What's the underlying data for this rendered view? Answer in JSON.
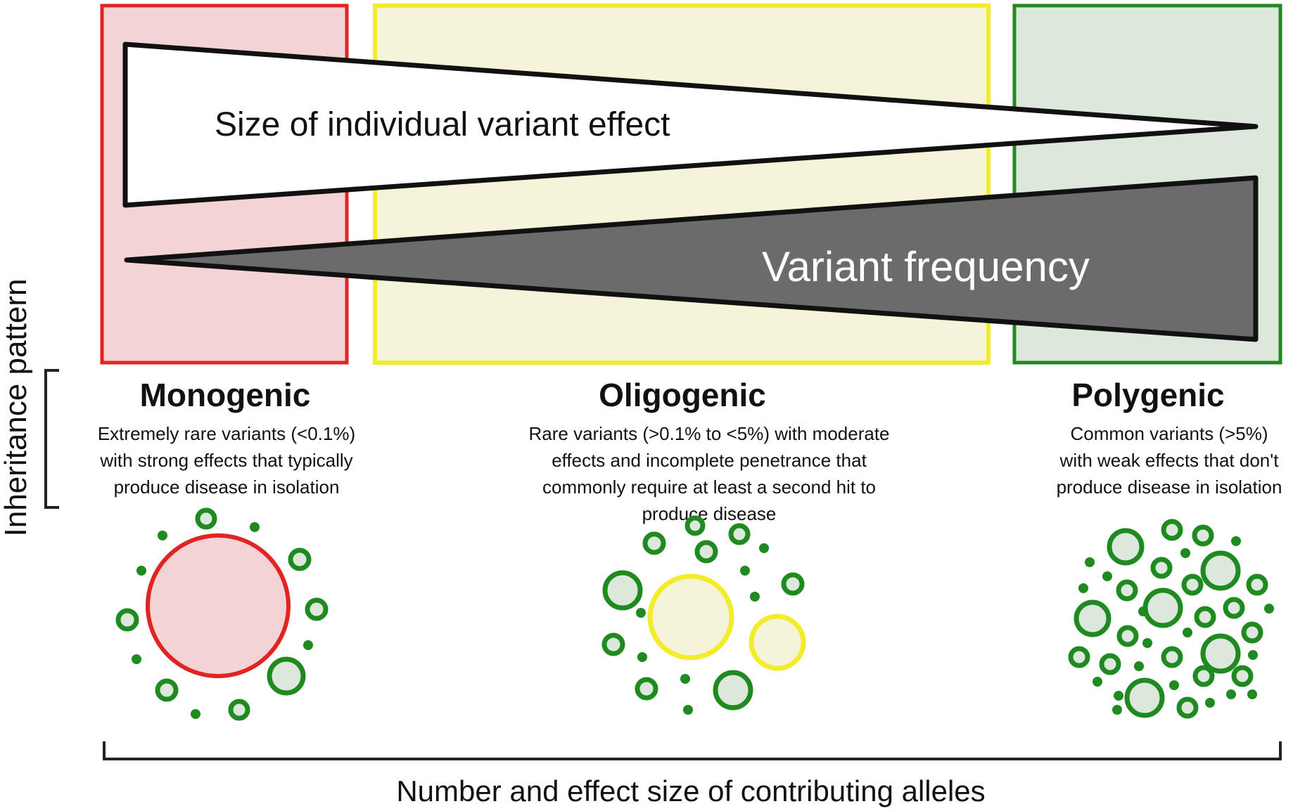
{
  "triangles": {
    "effect_label": "Size of individual variant effect",
    "frequency_label": "Variant frequency"
  },
  "axis": {
    "vertical_label": "Inheritance pattern",
    "horizontal_label": "Number and effect size of contributing alleles"
  },
  "categories": [
    {
      "id": "monogenic",
      "title": "Monogenic",
      "desc": [
        "Extremely rare variants (<0.1%)",
        "with strong effects that typically",
        "produce disease in isolation"
      ],
      "color": "#e02424",
      "fill": "#f3d3d3"
    },
    {
      "id": "oligogenic",
      "title": "Oligogenic",
      "desc": [
        "Rare variants (>0.1% to <5%) with moderate",
        "effects and incomplete penetrance that",
        "commonly require at least a second hit to",
        "produce disease"
      ],
      "color": "#f2ec2a",
      "fill": "#f6f4d8"
    },
    {
      "id": "polygenic",
      "title": "Polygenic",
      "desc": [
        "Common variants (>5%)",
        "with weak effects that don't",
        "produce disease in isolation"
      ],
      "color": "#1f8a1f",
      "fill": "#dde8dc"
    }
  ],
  "colors": {
    "variant_green": "#1f8a1f",
    "frequency_gray": "#6b6b6b",
    "bracket": "#222222"
  }
}
